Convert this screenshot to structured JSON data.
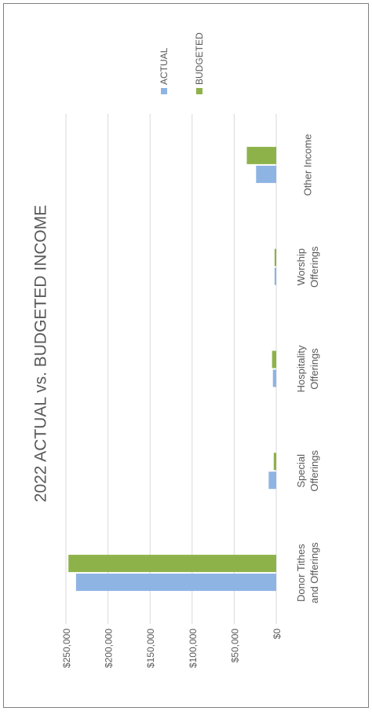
{
  "chart_data": {
    "type": "bar",
    "orientation": "rotated-90",
    "title": "2022 ACTUAL vs. BUDGETED INCOME",
    "categories": [
      [
        "Donor Tithes",
        "and Offerings"
      ],
      [
        "Special",
        "Offerings"
      ],
      [
        "Hospitality",
        "Offerings"
      ],
      [
        "Worship",
        "Offerings"
      ],
      [
        "Other Income"
      ]
    ],
    "series": [
      {
        "name": "ACTUAL",
        "color": "#8eb4e3",
        "values": [
          238000,
          9000,
          4000,
          2000,
          24000
        ]
      },
      {
        "name": "BUDGETED",
        "color": "#8db24a",
        "values": [
          247000,
          3000,
          5000,
          2000,
          35000
        ]
      }
    ],
    "ylim": [
      0,
      250000
    ],
    "yticks": [
      "$0",
      "$50,000",
      "$100,000",
      "$150,000",
      "$200,000",
      "$250,000"
    ],
    "grid": true,
    "legend_position": "top"
  }
}
